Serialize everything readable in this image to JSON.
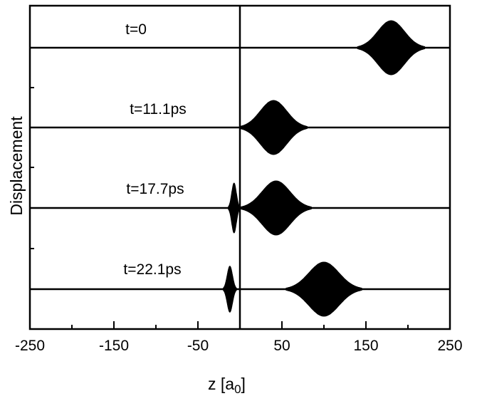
{
  "chart_data": {
    "type": "line",
    "xlabel": "z [a",
    "xlabel_sub": "0",
    "xlabel_close": "]",
    "ylabel": "Displacement",
    "xlim": [
      -250,
      250
    ],
    "xticks_major": [
      "-250",
      "-150",
      "-50",
      "50",
      "150",
      "250"
    ],
    "xticks_major_values": [
      -250,
      -150,
      -50,
      50,
      150,
      250
    ],
    "xticks_minor_values": [
      -200,
      -100,
      0,
      100,
      200
    ],
    "vertical_line_x": 0,
    "grid": false,
    "legend": "none",
    "series": [
      {
        "time_label": "t=0",
        "packets": [
          {
            "center": 180,
            "halfwidth": 40,
            "amplitude": 1.0
          }
        ]
      },
      {
        "time_label": "t=11.1ps",
        "packets": [
          {
            "center": 40,
            "halfwidth": 40,
            "amplitude": 1.0,
            "start": 0
          }
        ]
      },
      {
        "time_label": "t=17.7ps",
        "packets": [
          {
            "center": -7,
            "halfwidth": 7,
            "amplitude": 0.92
          },
          {
            "center": 43,
            "halfwidth": 42,
            "amplitude": 1.0
          }
        ]
      },
      {
        "time_label": "t=22.1ps",
        "packets": [
          {
            "center": -12,
            "halfwidth": 8,
            "amplitude": 0.85
          },
          {
            "center": 100,
            "halfwidth": 45,
            "amplitude": 1.0
          }
        ]
      }
    ]
  }
}
